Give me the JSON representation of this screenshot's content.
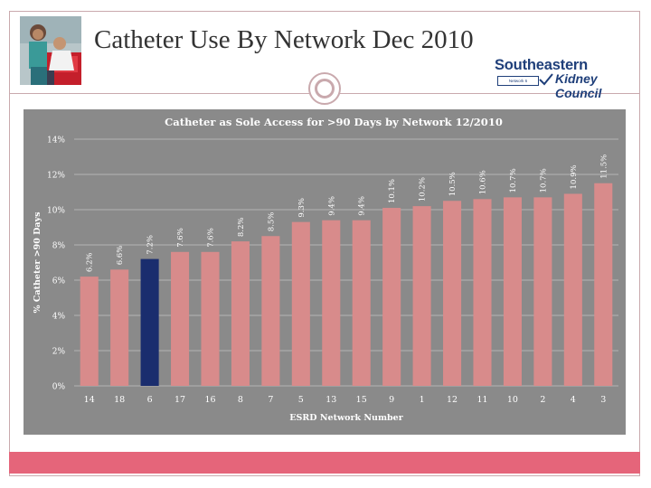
{
  "slide": {
    "title": "Catheter Use By Network Dec 2010"
  },
  "logo": {
    "line1": "Southeastern",
    "line2": "Kidney Council",
    "small_box": "Network 6"
  },
  "colors": {
    "bar_default": "#d88b8b",
    "bar_highlight": "#1a2d6e",
    "plot_bg": "#8a8a8a",
    "footer": "#e5657a",
    "frame": "#c9a9ad",
    "title_text": "#333333",
    "logo_text": "#1f3f7a"
  },
  "chart_data": {
    "type": "bar",
    "title": "Catheter as Sole Access for >90 Days by Network 12/2010",
    "xlabel": "ESRD Network Number",
    "ylabel": "% Catheter >90 Days",
    "ylim": [
      0,
      14
    ],
    "yticks": [
      "0%",
      "2%",
      "4%",
      "6%",
      "8%",
      "10%",
      "12%",
      "14%"
    ],
    "grid": true,
    "legend": "none",
    "categories": [
      "14",
      "18",
      "6",
      "17",
      "16",
      "8",
      "7",
      "5",
      "13",
      "15",
      "9",
      "1",
      "12",
      "11",
      "10",
      "2",
      "4",
      "3"
    ],
    "values": [
      6.2,
      6.6,
      7.2,
      7.6,
      7.6,
      8.2,
      8.5,
      9.3,
      9.4,
      9.4,
      10.1,
      10.2,
      10.5,
      10.6,
      10.7,
      10.7,
      10.9,
      11.5
    ],
    "data_labels": [
      "6.2%",
      "6.6%",
      "7.2%",
      "7.6%",
      "7.6%",
      "8.2%",
      "8.5%",
      "9.3%",
      "9.4%",
      "9.4%",
      "10.1%",
      "10.2%",
      "10.5%",
      "10.6%",
      "10.7%",
      "10.7%",
      "10.9%",
      "11.5%"
    ],
    "highlight_category": "6"
  }
}
